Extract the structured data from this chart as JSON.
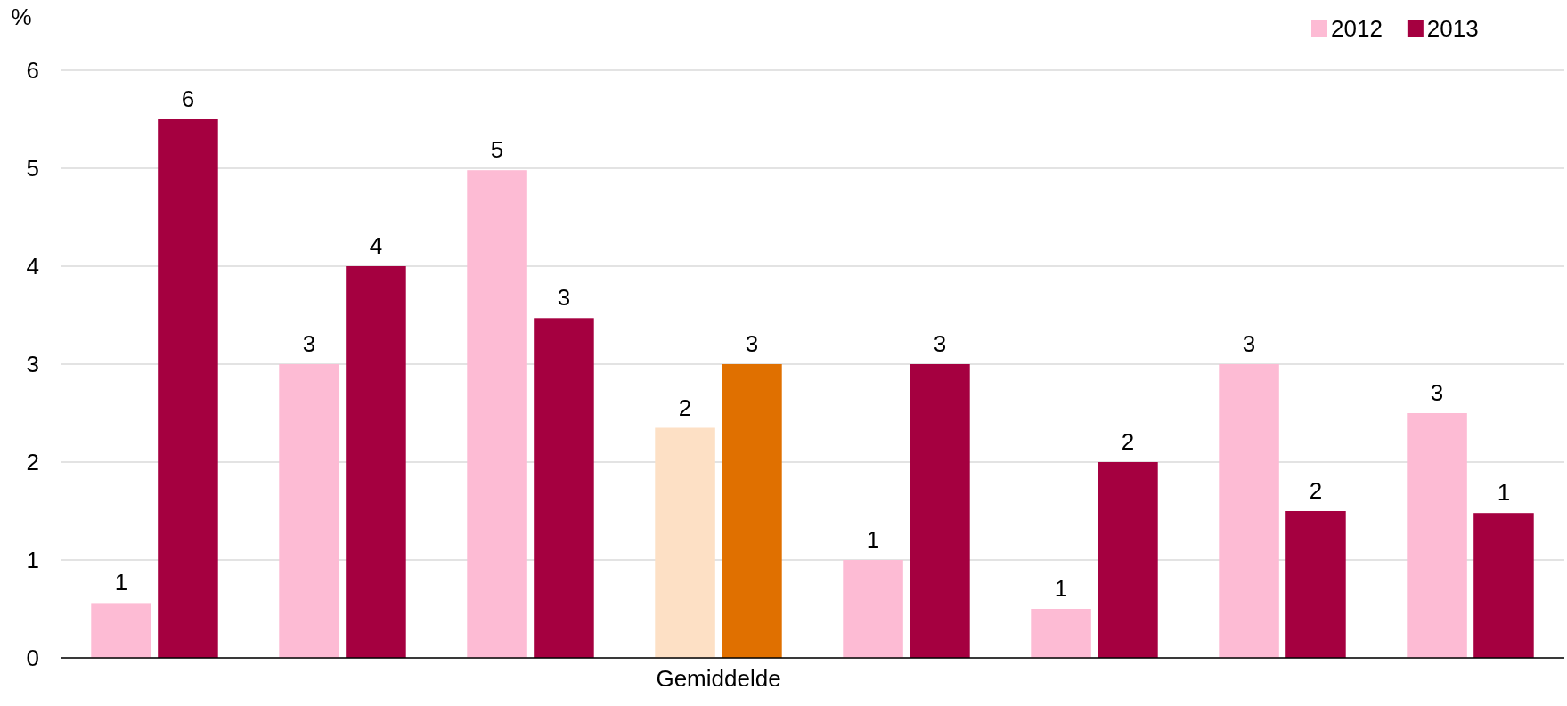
{
  "chart_data": {
    "type": "bar",
    "ylabel": "%",
    "categories": [
      null,
      null,
      null,
      "Gemiddelde",
      null,
      null,
      null,
      null
    ],
    "series": [
      {
        "name": "2012",
        "color": "#fdbbd4",
        "colors": [
          "#fdbbd4",
          "#fdbbd4",
          "#fdbbd4",
          "#fde0c5",
          "#fdbbd4",
          "#fdbbd4",
          "#fdbbd4",
          "#fdbbd4"
        ],
        "values": [
          0.56,
          3.0,
          4.98,
          2.35,
          1.0,
          0.5,
          3.0,
          2.5
        ],
        "value_labels": [
          "1",
          "3",
          "5",
          "2",
          "1",
          "1",
          "3",
          "3"
        ]
      },
      {
        "name": "2013",
        "color": "#a50040",
        "colors": [
          "#a50040",
          "#a50040",
          "#a50040",
          "#e07000",
          "#a50040",
          "#a50040",
          "#a50040",
          "#a50040"
        ],
        "values": [
          5.5,
          4.0,
          3.47,
          3.0,
          3.0,
          2.0,
          1.5,
          1.48
        ],
        "value_labels": [
          "6",
          "4",
          "3",
          "3",
          "3",
          "2",
          "2",
          "1"
        ]
      }
    ],
    "ylim": [
      0,
      6
    ],
    "yticks": [
      0,
      1,
      2,
      3,
      4,
      5,
      6
    ],
    "grid": "y",
    "legend": "top right"
  }
}
